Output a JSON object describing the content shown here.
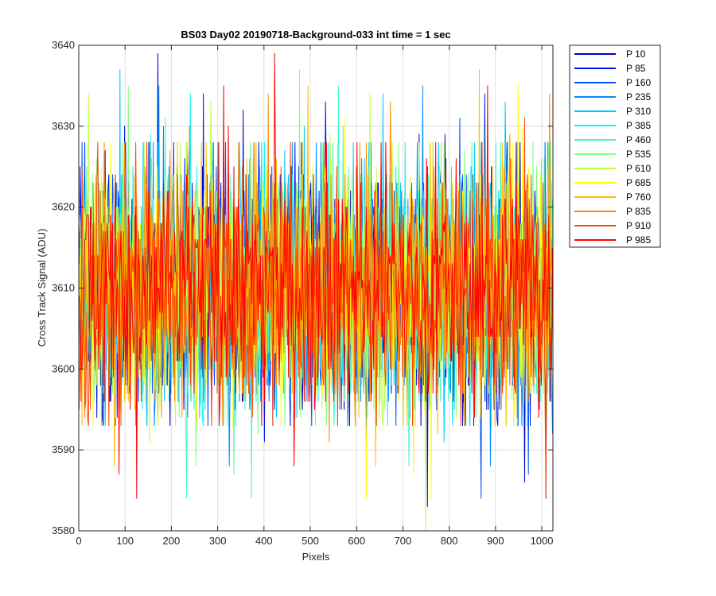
{
  "chart_data": {
    "type": "line",
    "title": "BS03 Day02 20190718-Background-033 int time = 1 sec",
    "xlabel": "Pixels",
    "ylabel": "Cross Track Signal (ADU)",
    "xlim": [
      0,
      1024
    ],
    "ylim": [
      3580,
      3640
    ],
    "xticks": [
      0,
      100,
      200,
      300,
      400,
      500,
      600,
      700,
      800,
      900,
      1000
    ],
    "yticks": [
      3580,
      3590,
      3600,
      3610,
      3620,
      3630,
      3640
    ],
    "grid": true,
    "legend_position": "outside-top-right",
    "noise_profile": {
      "center": 3610,
      "typical_range": [
        3593,
        3628
      ],
      "extreme_min": 3580,
      "extreme_max": 3639
    },
    "series": [
      {
        "name": "P 10",
        "color": "#0000c0"
      },
      {
        "name": "P 85",
        "color": "#0016e6"
      },
      {
        "name": "P 160",
        "color": "#0050ff"
      },
      {
        "name": "P 235",
        "color": "#008cff"
      },
      {
        "name": "P 310",
        "color": "#00c8ff"
      },
      {
        "name": "P 385",
        "color": "#12f0f0"
      },
      {
        "name": "P 460",
        "color": "#48f8c0"
      },
      {
        "name": "P 535",
        "color": "#80ff80"
      },
      {
        "name": "P 610",
        "color": "#c0ff40"
      },
      {
        "name": "P 685",
        "color": "#ffff00"
      },
      {
        "name": "P 760",
        "color": "#ffc000"
      },
      {
        "name": "P 835",
        "color": "#ff8c00"
      },
      {
        "name": "P 910",
        "color": "#ff4600"
      },
      {
        "name": "P 985",
        "color": "#ff0000"
      }
    ]
  }
}
